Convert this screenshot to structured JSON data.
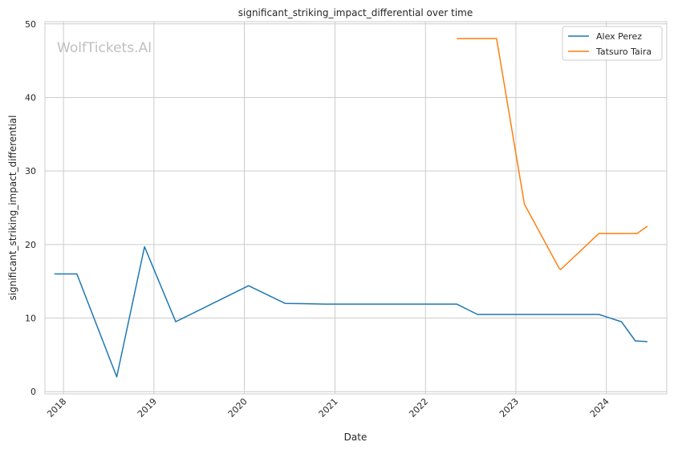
{
  "watermark": "WolfTickets.AI",
  "chart_data": {
    "type": "line",
    "title": "significant_striking_impact_differential over time",
    "xlabel": "Date",
    "ylabel": "significant_striking_impact_differential",
    "xlim": [
      "2017-10-18",
      "2024-09-01"
    ],
    "ylim": [
      -0.3,
      50.3
    ],
    "x_ticks": [
      "2018",
      "2019",
      "2020",
      "2021",
      "2022",
      "2023",
      "2024"
    ],
    "y_ticks": [
      0,
      10,
      20,
      30,
      40,
      50
    ],
    "grid": true,
    "legend_position": "top-right",
    "series": [
      {
        "name": "Alex Perez",
        "color": "#1f77b4",
        "x": [
          "2017-11-25",
          "2018-02-24",
          "2018-08-04",
          "2018-11-24",
          "2019-03-30",
          "2020-01-18",
          "2020-06-13",
          "2020-11-21",
          "2022-05-07",
          "2022-07-30",
          "2023-12-02",
          "2024-03-02",
          "2024-04-27",
          "2024-06-15"
        ],
        "values": [
          16.0,
          16.0,
          2.0,
          19.7,
          9.5,
          14.4,
          12.0,
          11.9,
          11.9,
          10.5,
          10.5,
          9.5,
          6.9,
          6.8
        ]
      },
      {
        "name": "Tatsuro Taira",
        "color": "#ff7f0e",
        "x": [
          "2022-05-07",
          "2022-10-15",
          "2023-02-04",
          "2023-06-24",
          "2023-07-01",
          "2023-12-02",
          "2024-05-04",
          "2024-06-15"
        ],
        "values": [
          48.0,
          48.0,
          25.5,
          16.8,
          16.6,
          21.5,
          21.5,
          22.5
        ]
      }
    ]
  }
}
